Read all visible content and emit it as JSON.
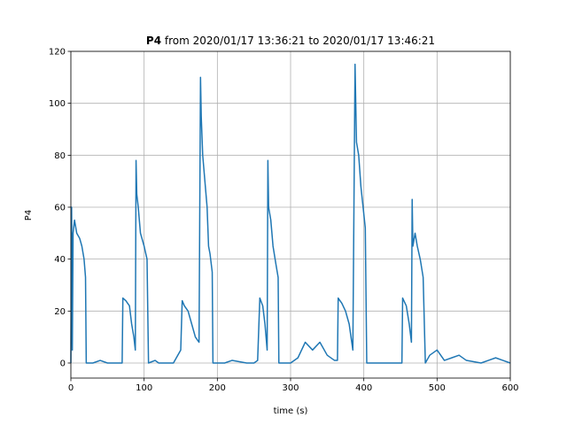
{
  "chart_data": {
    "type": "line",
    "title": {
      "bold": "P4",
      "text": "from 2020/01/17 13:36:21 to 2020/01/17 13:46:21"
    },
    "xlabel": "time (s)",
    "ylabel": "P4",
    "xlim": [
      0,
      600
    ],
    "xticks": [
      0,
      100,
      200,
      300,
      400,
      500,
      600
    ],
    "ylim": [
      -5.8,
      120
    ],
    "yticks": [
      0,
      20,
      40,
      60,
      80,
      100,
      120
    ],
    "grid": true,
    "x": [
      0,
      1,
      2,
      3,
      5,
      8,
      12,
      15,
      18,
      20,
      21,
      30,
      40,
      50,
      60,
      65,
      70,
      71,
      75,
      80,
      83,
      86,
      88,
      89,
      90,
      92,
      95,
      100,
      104,
      106,
      115,
      120,
      140,
      150,
      152,
      155,
      160,
      165,
      170,
      175,
      177,
      178,
      180,
      183,
      186,
      188,
      190,
      193,
      194,
      210,
      220,
      240,
      250,
      255,
      258,
      262,
      265,
      268,
      269,
      270,
      273,
      276,
      280,
      283,
      284,
      300,
      310,
      320,
      330,
      340,
      350,
      360,
      364,
      365,
      370,
      375,
      380,
      385,
      388,
      389,
      390,
      393,
      396,
      399,
      402,
      404,
      420,
      440,
      452,
      453,
      458,
      462,
      465,
      466,
      467,
      470,
      473,
      477,
      481,
      484,
      490,
      500,
      510,
      520,
      530,
      540,
      560,
      570,
      580,
      590,
      600
    ],
    "series": [
      {
        "name": "P4",
        "color": "#1f77b4",
        "values": [
          0,
          60,
          5,
          50,
          55,
          50,
          48,
          45,
          40,
          33,
          0,
          0,
          1,
          0,
          0,
          0,
          0,
          25,
          24,
          22,
          15,
          10,
          5,
          78,
          65,
          60,
          50,
          45,
          40,
          0,
          1,
          0,
          0,
          5,
          24,
          22,
          20,
          15,
          10,
          8,
          110,
          95,
          80,
          70,
          60,
          45,
          42,
          35,
          0,
          0,
          1,
          0,
          0,
          1,
          25,
          22,
          15,
          5,
          78,
          60,
          55,
          45,
          38,
          33,
          0,
          0,
          2,
          8,
          5,
          8,
          3,
          1,
          1,
          25,
          23,
          20,
          15,
          5,
          115,
          100,
          85,
          80,
          68,
          60,
          52,
          0,
          0,
          0,
          0,
          25,
          22,
          15,
          8,
          63,
          45,
          50,
          45,
          40,
          33,
          0,
          3,
          5,
          1,
          2,
          3,
          1,
          0,
          1,
          2,
          1,
          0
        ]
      }
    ]
  }
}
